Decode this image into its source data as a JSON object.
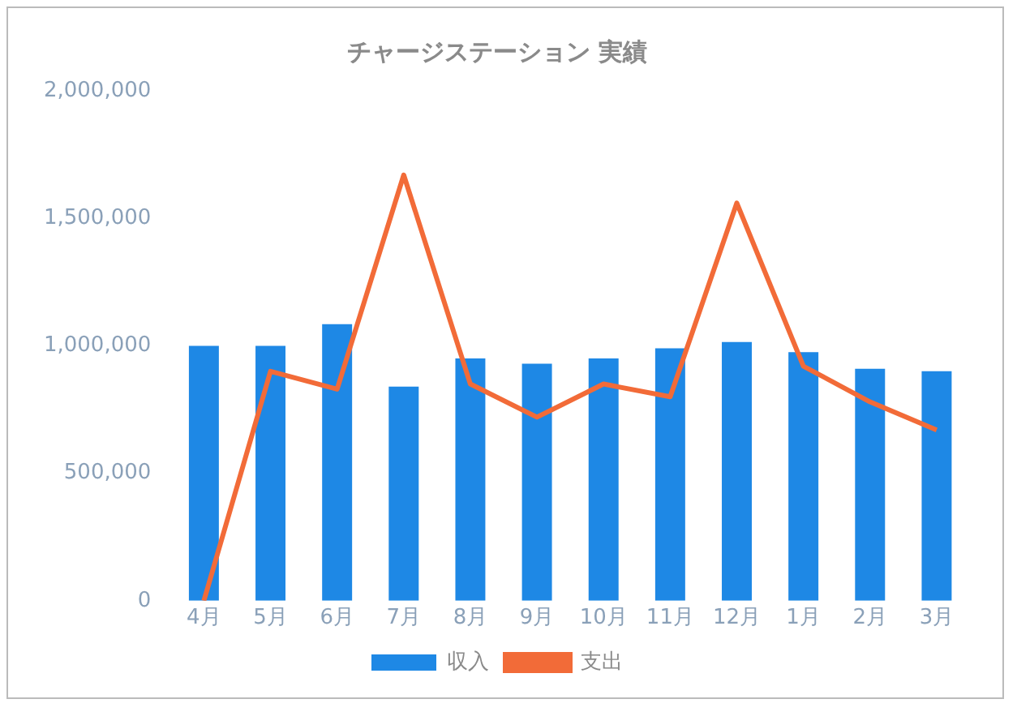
{
  "chart_data": {
    "type": "bar",
    "title": "チャージステーション 実績",
    "categories": [
      "4月",
      "5月",
      "6月",
      "7月",
      "8月",
      "9月",
      "10月",
      "11月",
      "12月",
      "1月",
      "2月",
      "3月"
    ],
    "series": [
      {
        "name": "収入",
        "color": "#1e88e5",
        "values": [
          1000000,
          1000000,
          1085000,
          840000,
          950000,
          930000,
          950000,
          990000,
          1015000,
          975000,
          910000,
          900000
        ]
      },
      {
        "name": "支出",
        "type": "line",
        "color": "#f26b38",
        "values": [
          0,
          900000,
          830000,
          1670000,
          850000,
          720000,
          850000,
          800000,
          1560000,
          920000,
          780000,
          670000
        ]
      }
    ],
    "ylim": [
      0,
      2000000
    ],
    "yticks": [
      0,
      {
        "value": 500000,
        "label": "500,000"
      },
      {
        "value": 1000000,
        "label": "1,000,000"
      },
      {
        "value": 1500000,
        "label": "1,500,000"
      },
      {
        "value": 2000000,
        "label": "2,000,000"
      }
    ],
    "grid": false,
    "legend": "bottom",
    "marker": "none"
  }
}
